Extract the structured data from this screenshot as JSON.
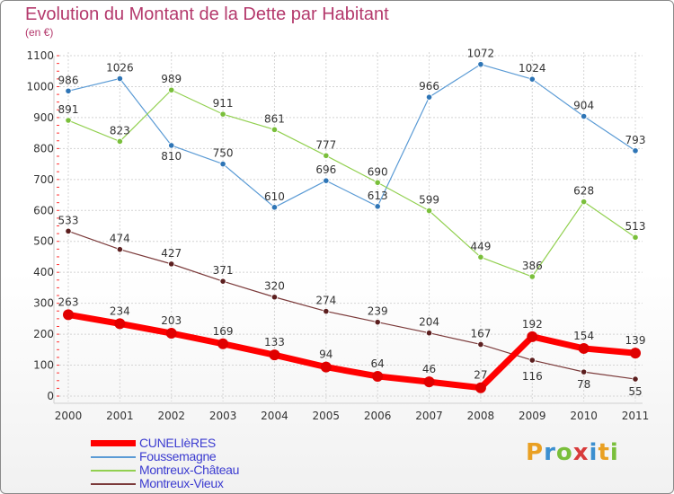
{
  "title": "Evolution du Montant de la Dette par Habitant",
  "subtitle": "(en €)",
  "logo": {
    "text": "Proxiti",
    "letter_colors": [
      "#e9a023",
      "#3b8fd0",
      "#7abf3b",
      "#d83b3b",
      "#3b8fd0",
      "#e9a023",
      "#7abf3b"
    ]
  },
  "chart_data": {
    "type": "line",
    "x": [
      "2000",
      "2001",
      "2002",
      "2003",
      "2004",
      "2005",
      "2006",
      "2007",
      "2008",
      "2009",
      "2010",
      "2011"
    ],
    "ylim": [
      0,
      1100
    ],
    "yticks": [
      "0",
      "100",
      "200",
      "300",
      "400",
      "500",
      "600",
      "700",
      "800",
      "900",
      "1000",
      "1100"
    ],
    "grid": true,
    "legend_position": "bottom-left",
    "series": [
      {
        "name": "Foussemagne",
        "color": "#5b9bd5",
        "marker_color": "#2e75b6",
        "values": [
          986,
          1026,
          810,
          750,
          610,
          696,
          613,
          966,
          1072,
          1024,
          904,
          793
        ],
        "labels": [
          "986",
          "1026",
          "810",
          "750",
          "610",
          "696",
          "613",
          "966",
          "1072",
          "1024",
          "904",
          "793"
        ]
      },
      {
        "name": "Montreux-Château",
        "color": "#92d050",
        "marker_color": "#7abf3b",
        "values": [
          891,
          823,
          989,
          911,
          861,
          777,
          690,
          599,
          449,
          386,
          628,
          513
        ],
        "labels": [
          "891",
          "823",
          "989",
          "911",
          "861",
          "777",
          "690",
          "599",
          "449",
          "386",
          "628",
          "513"
        ]
      },
      {
        "name": "Montreux-Vieux",
        "color": "#7b3a3a",
        "marker_color": "#5c1f1f",
        "values": [
          533,
          474,
          427,
          371,
          320,
          274,
          239,
          204,
          167,
          116,
          78,
          55
        ],
        "labels": [
          "533",
          "474",
          "427",
          "371",
          "320",
          "274",
          "239",
          "204",
          "167",
          "116",
          "78",
          "55"
        ]
      },
      {
        "name": "CUNELIèRES",
        "color": "#ff0000",
        "marker_color": "#e00000",
        "values": [
          263,
          234,
          203,
          169,
          133,
          94,
          64,
          46,
          27,
          192,
          154,
          139
        ],
        "labels": [
          "263",
          "234",
          "203",
          "169",
          "133",
          "94",
          "64",
          "46",
          "27",
          "192",
          "154",
          "139"
        ]
      }
    ],
    "legend": [
      {
        "label": "CUNELIèRES",
        "color": "#ff0000"
      },
      {
        "label": "Foussemagne",
        "color": "#5b9bd5"
      },
      {
        "label": "Montreux-Château",
        "color": "#92d050"
      },
      {
        "label": "Montreux-Vieux",
        "color": "#7b3a3a"
      }
    ]
  }
}
